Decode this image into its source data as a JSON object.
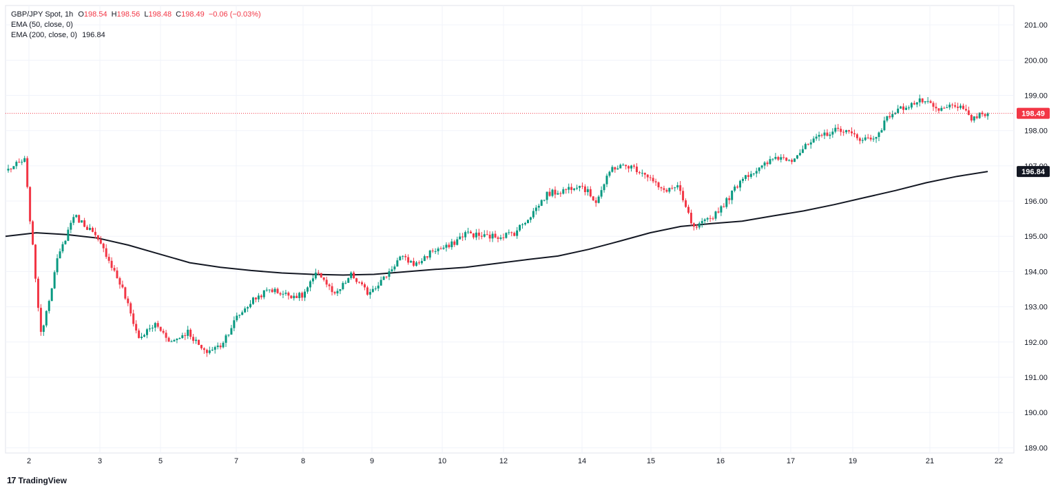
{
  "legend": {
    "symbol": "GBP/JPY Spot, 1h",
    "o_label": "O",
    "o_value": "198.54",
    "h_label": "H",
    "h_value": "198.56",
    "l_label": "L",
    "l_value": "198.48",
    "c_label": "C",
    "c_value": "198.49",
    "change": "−0.06 (−0.03%)",
    "ema50_label": "EMA (50, close, 0)",
    "ema200_label": "EMA (200, close, 0)",
    "ema200_value": "196.84"
  },
  "branding": {
    "logo": "17",
    "name": "TradingView"
  },
  "colors": {
    "up": "#089981",
    "down": "#f23645",
    "ema200": "#131722",
    "grid": "#f0f3fa",
    "text": "#131722"
  },
  "chart_data": {
    "type": "candlestick",
    "title": "GBP/JPY Spot, 1h",
    "y_ticks": [
      "189.00",
      "190.00",
      "191.00",
      "192.00",
      "193.00",
      "194.00",
      "195.00",
      "196.00",
      "197.00",
      "198.00",
      "199.00",
      "200.00",
      "201.00"
    ],
    "ylim": [
      188.9,
      201.5
    ],
    "x_ticks": [
      "2",
      "3",
      "5",
      "7",
      "8",
      "9",
      "10",
      "12",
      "14",
      "15",
      "16",
      "17",
      "19",
      "21",
      "22"
    ],
    "last_price_label": "198.49",
    "last_price": 198.49,
    "ema200_label_value": "196.84",
    "ema200_last": 196.84,
    "anchors": [
      {
        "d": "1",
        "v": 196.9
      },
      {
        "d": "1",
        "v": 197.15
      },
      {
        "d": "1",
        "v": 192.2
      },
      {
        "d": "1",
        "v": 194.3
      },
      {
        "d": "2",
        "v": 195.6
      },
      {
        "d": "2",
        "v": 195.2
      },
      {
        "d": "2",
        "v": 194.5
      },
      {
        "d": "2",
        "v": 193.5
      },
      {
        "d": "3",
        "v": 192.1
      },
      {
        "d": "3",
        "v": 192.5
      },
      {
        "d": "3",
        "v": 192.0
      },
      {
        "d": "3",
        "v": 192.3
      },
      {
        "d": "4",
        "v": 191.7
      },
      {
        "d": "4",
        "v": 191.9
      },
      {
        "d": "5",
        "v": 192.7
      },
      {
        "d": "5",
        "v": 193.2
      },
      {
        "d": "6",
        "v": 193.5
      },
      {
        "d": "6",
        "v": 193.35
      },
      {
        "d": "7",
        "v": 193.3
      },
      {
        "d": "7",
        "v": 194.0
      },
      {
        "d": "7",
        "v": 193.3
      },
      {
        "d": "7",
        "v": 193.9
      },
      {
        "d": "8",
        "v": 193.4
      },
      {
        "d": "8",
        "v": 193.8
      },
      {
        "d": "9",
        "v": 194.4
      },
      {
        "d": "9",
        "v": 194.2
      },
      {
        "d": "9",
        "v": 194.6
      },
      {
        "d": "10",
        "v": 194.7
      },
      {
        "d": "10",
        "v": 195.1
      },
      {
        "d": "11",
        "v": 195.0
      },
      {
        "d": "12",
        "v": 195.0
      },
      {
        "d": "12",
        "v": 195.1
      },
      {
        "d": "13",
        "v": 195.6
      },
      {
        "d": "13",
        "v": 196.2
      },
      {
        "d": "14",
        "v": 196.3
      },
      {
        "d": "14",
        "v": 196.5
      },
      {
        "d": "14",
        "v": 196.0
      },
      {
        "d": "14",
        "v": 196.95
      },
      {
        "d": "15",
        "v": 197.0
      },
      {
        "d": "15",
        "v": 196.8
      },
      {
        "d": "15",
        "v": 196.3
      },
      {
        "d": "15",
        "v": 196.4
      },
      {
        "d": "16",
        "v": 195.2
      },
      {
        "d": "16",
        "v": 195.5
      },
      {
        "d": "16",
        "v": 196.0
      },
      {
        "d": "16",
        "v": 196.7
      },
      {
        "d": "17",
        "v": 196.9
      },
      {
        "d": "17",
        "v": 197.25
      },
      {
        "d": "17",
        "v": 197.2
      },
      {
        "d": "18",
        "v": 197.6
      },
      {
        "d": "18",
        "v": 197.9
      },
      {
        "d": "19",
        "v": 198.05
      },
      {
        "d": "19",
        "v": 197.8
      },
      {
        "d": "19",
        "v": 197.75
      },
      {
        "d": "20",
        "v": 198.45
      },
      {
        "d": "20",
        "v": 198.7
      },
      {
        "d": "21",
        "v": 198.85
      },
      {
        "d": "21",
        "v": 198.55
      },
      {
        "d": "21",
        "v": 198.75
      },
      {
        "d": "21",
        "v": 198.35
      },
      {
        "d": "21",
        "v": 198.49
      }
    ],
    "ema200_points": [
      195.0,
      195.1,
      195.05,
      194.95,
      194.75,
      194.5,
      194.25,
      194.12,
      194.03,
      193.96,
      193.92,
      193.9,
      193.92,
      193.99,
      194.06,
      194.12,
      194.23,
      194.34,
      194.44,
      194.63,
      194.86,
      195.1,
      195.28,
      195.36,
      195.43,
      195.58,
      195.72,
      195.9,
      196.1,
      196.3,
      196.52,
      196.7,
      196.84
    ]
  }
}
